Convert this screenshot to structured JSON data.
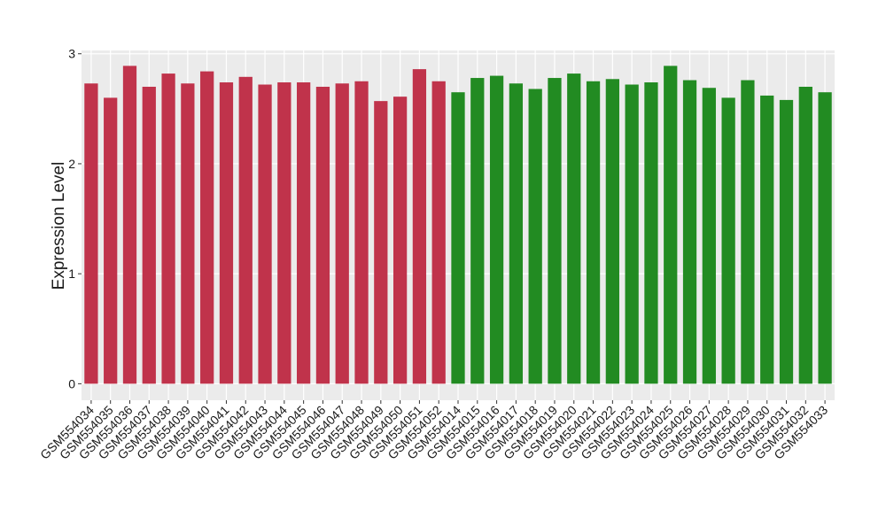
{
  "chart_data": {
    "type": "bar",
    "y_label": "Expression Level",
    "categories": [
      "GSM554034",
      "GSM554035",
      "GSM554036",
      "GSM554037",
      "GSM554038",
      "GSM554039",
      "GSM554040",
      "GSM554041",
      "GSM554042",
      "GSM554043",
      "GSM554044",
      "GSM554045",
      "GSM554046",
      "GSM554047",
      "GSM554048",
      "GSM554049",
      "GSM554050",
      "GSM554051",
      "GSM554052",
      "GSM554014",
      "GSM554015",
      "GSM554016",
      "GSM554017",
      "GSM554018",
      "GSM554019",
      "GSM554020",
      "GSM554021",
      "GSM554022",
      "GSM554023",
      "GSM554024",
      "GSM554025",
      "GSM554026",
      "GSM554027",
      "GSM554028",
      "GSM554029",
      "GSM554030",
      "GSM554031",
      "GSM554032",
      "GSM554033"
    ],
    "values": [
      2.73,
      2.6,
      2.89,
      2.7,
      2.82,
      2.73,
      2.84,
      2.74,
      2.79,
      2.72,
      2.74,
      2.74,
      2.7,
      2.73,
      2.75,
      2.57,
      2.61,
      2.86,
      2.75,
      2.65,
      2.78,
      2.8,
      2.73,
      2.68,
      2.78,
      2.82,
      2.75,
      2.77,
      2.72,
      2.74,
      2.89,
      2.76,
      2.69,
      2.6,
      2.76,
      2.62,
      2.58,
      2.7,
      2.65
    ],
    "colors": [
      "#c0334b",
      "#c0334b",
      "#c0334b",
      "#c0334b",
      "#c0334b",
      "#c0334b",
      "#c0334b",
      "#c0334b",
      "#c0334b",
      "#c0334b",
      "#c0334b",
      "#c0334b",
      "#c0334b",
      "#c0334b",
      "#c0334b",
      "#c0334b",
      "#c0334b",
      "#c0334b",
      "#c0334b",
      "#228b22",
      "#228b22",
      "#228b22",
      "#228b22",
      "#228b22",
      "#228b22",
      "#228b22",
      "#228b22",
      "#228b22",
      "#228b22",
      "#228b22",
      "#228b22",
      "#228b22",
      "#228b22",
      "#228b22",
      "#228b22",
      "#228b22",
      "#228b22",
      "#228b22",
      "#228b22"
    ],
    "ylim": [
      -0.15,
      3.03
    ],
    "yticks": [
      0,
      1,
      2,
      3
    ],
    "grid": true
  }
}
